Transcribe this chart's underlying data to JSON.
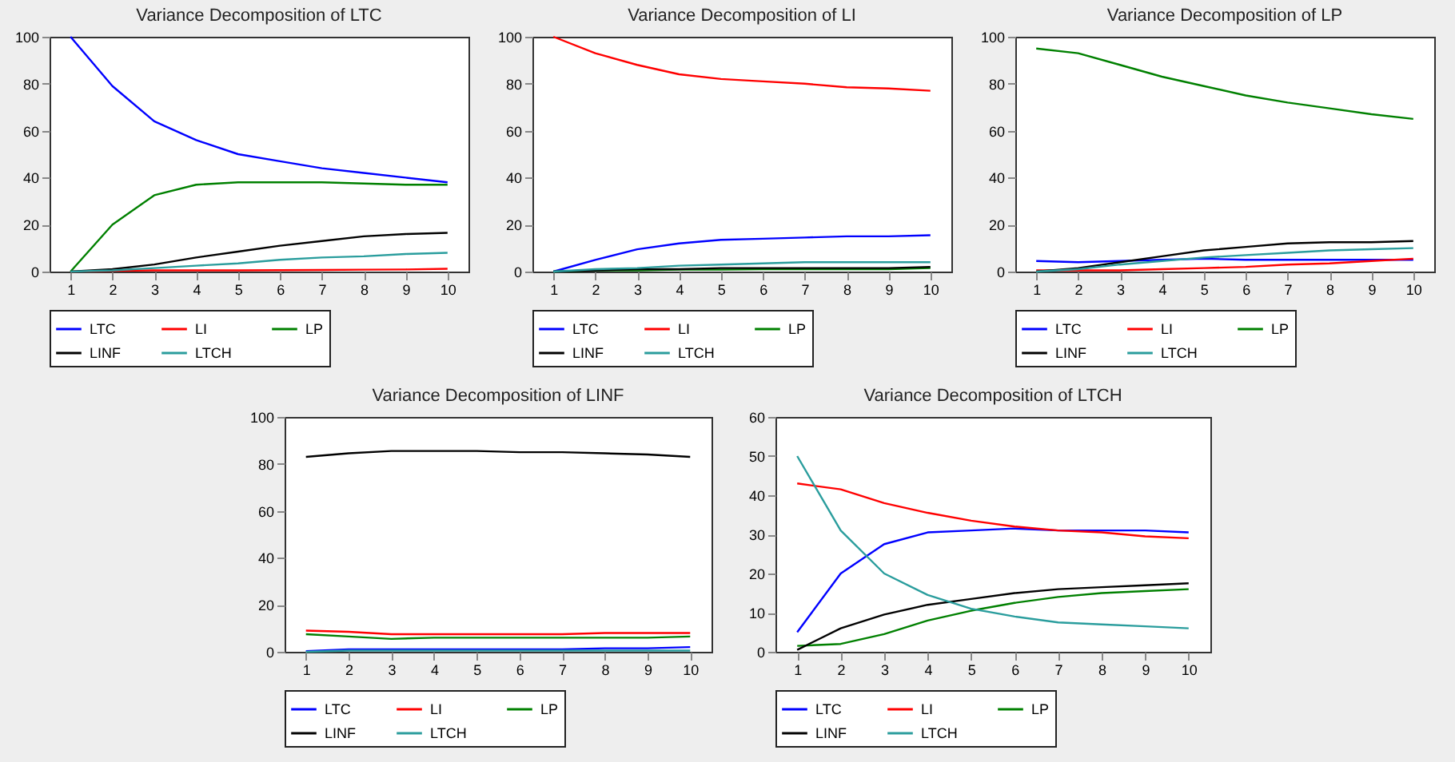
{
  "chart_data": [
    {
      "type": "line",
      "title": "Variance Decomposition of LTC",
      "categories": [
        "1",
        "2",
        "3",
        "4",
        "5",
        "6",
        "7",
        "8",
        "9",
        "10"
      ],
      "ylim": [
        0,
        100
      ],
      "yticks": [
        0,
        20,
        40,
        60,
        80,
        100
      ],
      "grid": false,
      "legend": "bottom",
      "series": [
        {
          "name": "LTC",
          "color": "#0000ff",
          "values": [
            100,
            79,
            64,
            56,
            50,
            47,
            44,
            42,
            40,
            38
          ]
        },
        {
          "name": "LI",
          "color": "#ff0000",
          "values": [
            0,
            0.3,
            0.5,
            0.5,
            0.5,
            0.6,
            0.7,
            0.8,
            0.9,
            1.2
          ]
        },
        {
          "name": "LP",
          "color": "#008000",
          "values": [
            0,
            20,
            32.5,
            37,
            38,
            38,
            38,
            37.5,
            37,
            37
          ]
        },
        {
          "name": "LINF",
          "color": "#000000",
          "values": [
            0,
            1,
            3,
            6,
            8.5,
            11,
            13,
            15,
            16,
            16.5
          ]
        },
        {
          "name": "LTCH",
          "color": "#2a9d9d",
          "values": [
            0,
            0.5,
            1.5,
            2.5,
            3.5,
            5,
            6,
            6.5,
            7.5,
            8
          ]
        }
      ]
    },
    {
      "type": "line",
      "title": "Variance Decomposition of LI",
      "categories": [
        "1",
        "2",
        "3",
        "4",
        "5",
        "6",
        "7",
        "8",
        "9",
        "10"
      ],
      "ylim": [
        0,
        100
      ],
      "yticks": [
        0,
        20,
        40,
        60,
        80,
        100
      ],
      "grid": false,
      "legend": "bottom",
      "series": [
        {
          "name": "LTC",
          "color": "#0000ff",
          "values": [
            0,
            5,
            9.5,
            12,
            13.5,
            14,
            14.5,
            15,
            15,
            15.5
          ]
        },
        {
          "name": "LI",
          "color": "#ff0000",
          "values": [
            100,
            93,
            88,
            84,
            82,
            81,
            80,
            78.5,
            78,
            77
          ]
        },
        {
          "name": "LP",
          "color": "#008000",
          "values": [
            0,
            0.5,
            0.5,
            0.8,
            0.8,
            1,
            1,
            1,
            1,
            1.5
          ]
        },
        {
          "name": "LINF",
          "color": "#000000",
          "values": [
            0,
            0.5,
            1,
            1,
            1.5,
            1.5,
            1.5,
            1.5,
            1.5,
            2
          ]
        },
        {
          "name": "LTCH",
          "color": "#2a9d9d",
          "values": [
            0,
            1,
            1.5,
            2.5,
            3,
            3.5,
            4,
            4,
            4,
            4
          ]
        }
      ]
    },
    {
      "type": "line",
      "title": "Variance Decomposition of LP",
      "categories": [
        "1",
        "2",
        "3",
        "4",
        "5",
        "6",
        "7",
        "8",
        "9",
        "10"
      ],
      "ylim": [
        0,
        100
      ],
      "yticks": [
        0,
        20,
        40,
        60,
        80,
        100
      ],
      "grid": false,
      "legend": "bottom",
      "series": [
        {
          "name": "LTC",
          "color": "#0000ff",
          "values": [
            4.5,
            4,
            4.5,
            5,
            5.5,
            5,
            5,
            5,
            5,
            5
          ]
        },
        {
          "name": "LI",
          "color": "#ff0000",
          "values": [
            0.5,
            0.5,
            0.5,
            1,
            1.5,
            2,
            3,
            3.5,
            4.5,
            5.5
          ]
        },
        {
          "name": "LP",
          "color": "#008000",
          "values": [
            95,
            93,
            88,
            83,
            79,
            75,
            72,
            69.5,
            67,
            65
          ]
        },
        {
          "name": "LINF",
          "color": "#000000",
          "values": [
            0,
            1.5,
            4,
            6.5,
            9,
            10.5,
            12,
            12.5,
            12.5,
            13
          ]
        },
        {
          "name": "LTCH",
          "color": "#2a9d9d",
          "values": [
            0,
            1,
            3,
            4.5,
            6,
            7,
            8,
            9,
            9.5,
            10
          ]
        }
      ]
    },
    {
      "type": "line",
      "title": "Variance Decomposition of LINF",
      "categories": [
        "1",
        "2",
        "3",
        "4",
        "5",
        "6",
        "7",
        "8",
        "9",
        "10"
      ],
      "ylim": [
        0,
        100
      ],
      "yticks": [
        0,
        20,
        40,
        60,
        80,
        100
      ],
      "grid": false,
      "legend": "bottom",
      "series": [
        {
          "name": "LTC",
          "color": "#0000ff",
          "values": [
            0.3,
            1,
            1,
            1,
            1,
            1,
            1,
            1.5,
            1.5,
            2
          ]
        },
        {
          "name": "LI",
          "color": "#ff0000",
          "values": [
            9,
            8.5,
            7.5,
            7.5,
            7.5,
            7.5,
            7.5,
            8,
            8,
            8
          ]
        },
        {
          "name": "LP",
          "color": "#008000",
          "values": [
            7.5,
            6.5,
            5.5,
            6,
            6,
            6,
            6,
            6,
            6,
            6.5
          ]
        },
        {
          "name": "LINF",
          "color": "#000000",
          "values": [
            83,
            84.5,
            85.5,
            85.5,
            85.5,
            85,
            85,
            84.5,
            84,
            83
          ]
        },
        {
          "name": "LTCH",
          "color": "#2a9d9d",
          "values": [
            0,
            0.5,
            0.5,
            0.5,
            0.5,
            0.5,
            0.5,
            0.5,
            0.5,
            0.5
          ]
        }
      ]
    },
    {
      "type": "line",
      "title": "Variance Decomposition of LTCH",
      "categories": [
        "1",
        "2",
        "3",
        "4",
        "5",
        "6",
        "7",
        "8",
        "9",
        "10"
      ],
      "ylim": [
        0,
        60
      ],
      "yticks": [
        0,
        10,
        20,
        30,
        40,
        50,
        60
      ],
      "grid": false,
      "legend": "bottom",
      "series": [
        {
          "name": "LTC",
          "color": "#0000ff",
          "values": [
            5,
            20,
            27.5,
            30.5,
            31,
            31.5,
            31,
            31,
            31,
            30.5
          ]
        },
        {
          "name": "LI",
          "color": "#ff0000",
          "values": [
            43,
            41.5,
            38,
            35.5,
            33.5,
            32,
            31,
            30.5,
            29.5,
            29
          ]
        },
        {
          "name": "LP",
          "color": "#008000",
          "values": [
            1.5,
            2,
            4.5,
            8,
            10.5,
            12.5,
            14,
            15,
            15.5,
            16
          ]
        },
        {
          "name": "LINF",
          "color": "#000000",
          "values": [
            0.5,
            6,
            9.5,
            12,
            13.5,
            15,
            16,
            16.5,
            17,
            17.5
          ]
        },
        {
          "name": "LTCH",
          "color": "#2a9d9d",
          "values": [
            50,
            31,
            20,
            14.5,
            11,
            9,
            7.5,
            7,
            6.5,
            6
          ]
        }
      ]
    }
  ]
}
